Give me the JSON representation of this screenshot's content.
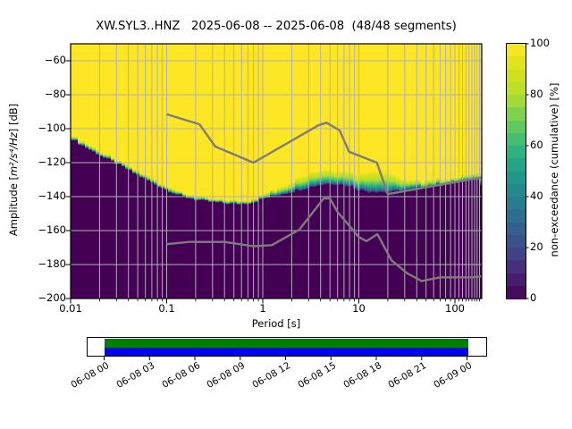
{
  "figure": {
    "title": "XW.SYL3..HNZ   2025-06-08 -- 2025-06-08  (48/48 segments)"
  },
  "axes": {
    "x": {
      "label": "Period [s]",
      "scale": "log",
      "min": 0.01,
      "max": 190,
      "tick_values": [
        0.01,
        0.1,
        1,
        10,
        100
      ],
      "tick_labels": [
        "0.01",
        "0.1",
        "1",
        "10",
        "100"
      ]
    },
    "y": {
      "label_parts": [
        "Amplitude [",
        "m²/s⁴/Hz",
        "] [dB]"
      ],
      "min": -200,
      "max": -50,
      "tick_values": [
        -60,
        -80,
        -100,
        -120,
        -140,
        -160,
        -180,
        -200
      ]
    }
  },
  "colorbar": {
    "label": "non-exceedance (cumulative) [%]",
    "min": 0,
    "max": 100,
    "steps": 20,
    "tick_values": [
      0,
      20,
      40,
      60,
      80,
      100
    ],
    "viridis_anchors": [
      "#440154",
      "#482878",
      "#3e4989",
      "#31688e",
      "#26828e",
      "#1f9e89",
      "#35b779",
      "#6ece58",
      "#b5de2b",
      "#d8e219",
      "#fde725"
    ]
  },
  "chart_data": {
    "type": "heatmap",
    "subtype": "ppsd-cumulative-histogram",
    "title": "XW.SYL3..HNZ   2025-06-08 -- 2025-06-08  (48/48 segments)",
    "xlabel": "Period [s]",
    "ylabel": "Amplitude [m²/s⁴/Hz] [dB]",
    "xscale": "log",
    "xlim": [
      0.01,
      190
    ],
    "ylim": [
      -200,
      -50
    ],
    "grid": true,
    "colormap": "viridis",
    "colorbar_label": "non-exceedance (cumulative) [%]",
    "colorbar_range": [
      0,
      100
    ],
    "segments_used": 48,
    "segments_total": 48,
    "period_bins_per_octave": 8,
    "envelope": {
      "comment": "PSD distribution band per period bin: db_lo = 0% non-exceedance (minimum), db_hi = 100% non-exceedance (maximum); colors between follow viridis cumulative percentiles",
      "periods": [
        0.01,
        0.0125,
        0.016,
        0.02,
        0.025,
        0.032,
        0.04,
        0.05,
        0.063,
        0.08,
        0.1,
        0.125,
        0.16,
        0.2,
        0.25,
        0.32,
        0.4,
        0.5,
        0.63,
        0.8,
        1.0,
        1.25,
        1.6,
        2.0,
        2.5,
        3.2,
        4.0,
        5.0,
        6.3,
        8.0,
        10.0,
        12.5,
        16.0,
        18.0,
        20.0,
        25.0,
        32.0,
        40.0,
        50.0,
        63.0,
        80.0,
        100.0,
        125.0,
        160.0,
        178.0,
        190.0
      ],
      "db_lo": [
        -105.5,
        -109,
        -112.5,
        -115.5,
        -118.5,
        -121.5,
        -124.5,
        -127.5,
        -130.5,
        -133.5,
        -136,
        -138.5,
        -140.5,
        -142,
        -142.8,
        -143.5,
        -144,
        -144.5,
        -144.3,
        -143.5,
        -141.5,
        -140,
        -138.5,
        -137.3,
        -136,
        -134.5,
        -133.2,
        -132.6,
        -132.7,
        -134,
        -136.3,
        -137.3,
        -137.3,
        -137.6,
        -137.8,
        -137.2,
        -136.3,
        -135.5,
        -134.7,
        -133.8,
        -132.9,
        -131.8,
        -131,
        -130,
        -129.6,
        -134
      ],
      "db_hi": [
        -102.5,
        -106.5,
        -110,
        -113,
        -116,
        -119,
        -122,
        -125,
        -128,
        -131,
        -133.5,
        -136,
        -138.3,
        -139.8,
        -140.6,
        -141.3,
        -141.8,
        -142.2,
        -142,
        -141,
        -138.8,
        -136.5,
        -133.5,
        -130.5,
        -127.5,
        -125.5,
        -124.5,
        -124,
        -124,
        -125.3,
        -127,
        -124.5,
        -123.8,
        -125,
        -124.5,
        -128,
        -130.5,
        -130.8,
        -130.3,
        -129.8,
        -129.2,
        -128.4,
        -127.5,
        -126.3,
        -125.5,
        -123.5
      ]
    },
    "noise_models": {
      "nhnm": {
        "name": "Peterson New High Noise Model",
        "periods": [
          0.1,
          0.22,
          0.32,
          0.8,
          3.8,
          4.6,
          6.3,
          7.9,
          15.4,
          20.0,
          354.8
        ],
        "db": [
          -91.5,
          -97.4,
          -110.5,
          -120.0,
          -98.0,
          -96.5,
          -101.0,
          -113.5,
          -120.0,
          -138.5,
          -126.0
        ]
      },
      "nlnm": {
        "name": "Peterson New Low Noise Model",
        "periods": [
          0.1,
          0.17,
          0.4,
          0.8,
          1.24,
          2.4,
          4.3,
          5.0,
          6.0,
          10.0,
          12.0,
          15.6,
          21.9,
          31.6,
          45.0,
          70.0,
          101.0,
          154.0,
          328.0
        ],
        "db": [
          -168.0,
          -166.7,
          -166.7,
          -169.2,
          -168.6,
          -159.4,
          -141.1,
          -141.1,
          -149.0,
          -163.8,
          -166.2,
          -162.1,
          -177.5,
          -185.0,
          -189.7,
          -187.5,
          -187.5,
          -187.5,
          -185.3
        ]
      },
      "line_color": "#7d7d7d"
    },
    "grid_color": "#b0b0b8"
  },
  "timeline": {
    "tick_labels": [
      "06-08 00",
      "06-08 03",
      "06-08 06",
      "06-08 09",
      "06-08 12",
      "06-08 15",
      "06-08 18",
      "06-08 21",
      "06-09 00"
    ],
    "coverage_top_color": "#008000",
    "coverage_bottom_color": "#0000ff"
  }
}
